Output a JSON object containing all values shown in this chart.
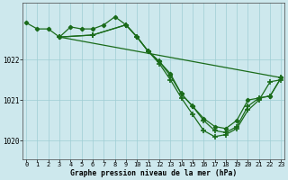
{
  "title": "Graphe pression niveau de la mer (hPa)",
  "bg_color": "#cde8ed",
  "grid_color": "#9ecdd4",
  "line_color": "#1a6b1a",
  "ylim": [
    1019.55,
    1023.4
  ],
  "xlim": [
    -0.3,
    23.3
  ],
  "yticks": [
    1020,
    1021,
    1022
  ],
  "xticks": [
    0,
    1,
    2,
    3,
    4,
    5,
    6,
    7,
    8,
    9,
    10,
    11,
    12,
    13,
    14,
    15,
    16,
    17,
    18,
    19,
    20,
    21,
    22,
    23
  ],
  "series": [
    {
      "x": [
        0,
        1,
        2,
        3,
        4,
        5,
        6,
        7,
        8,
        9,
        10,
        11,
        12,
        13,
        14,
        15,
        16,
        17,
        18,
        19,
        20,
        21,
        22,
        23
      ],
      "y": [
        1022.9,
        1022.75,
        1022.75,
        1022.55,
        1022.8,
        1022.75,
        1022.75,
        1022.85,
        1023.05,
        1022.85,
        1022.55,
        1022.2,
        1021.95,
        1021.65,
        1021.15,
        1020.85,
        1020.55,
        1020.35,
        1020.3,
        1020.5,
        1021.0,
        1021.05,
        1021.1,
        1021.55
      ],
      "marker": "D",
      "markersize": 2.2,
      "linestyle": "-",
      "linewidth": 0.9
    },
    {
      "x": [
        3,
        23
      ],
      "y": [
        1022.55,
        1021.55
      ],
      "marker": "none",
      "markersize": 0,
      "linestyle": "-",
      "linewidth": 0.9
    },
    {
      "x": [
        3,
        6,
        9,
        10,
        11,
        12,
        13,
        14,
        15,
        16,
        17,
        18,
        19,
        20,
        21,
        22,
        23
      ],
      "y": [
        1022.55,
        1022.6,
        1022.85,
        1022.55,
        1022.2,
        1021.95,
        1021.6,
        1021.15,
        1020.85,
        1020.5,
        1020.25,
        1020.2,
        1020.35,
        1020.85,
        1021.05,
        1021.1,
        1021.55
      ],
      "marker": "+",
      "markersize": 4.0,
      "linestyle": "-",
      "linewidth": 0.9
    },
    {
      "x": [
        3,
        6,
        9,
        10,
        11,
        12,
        13,
        14,
        15,
        16,
        17,
        18,
        19,
        20,
        21,
        22,
        23
      ],
      "y": [
        1022.55,
        1022.6,
        1022.85,
        1022.55,
        1022.2,
        1021.9,
        1021.5,
        1021.05,
        1020.65,
        1020.25,
        1020.1,
        1020.15,
        1020.3,
        1020.75,
        1021.0,
        1021.45,
        1021.5
      ],
      "marker": "+",
      "markersize": 4.0,
      "linestyle": "-",
      "linewidth": 0.9
    }
  ]
}
